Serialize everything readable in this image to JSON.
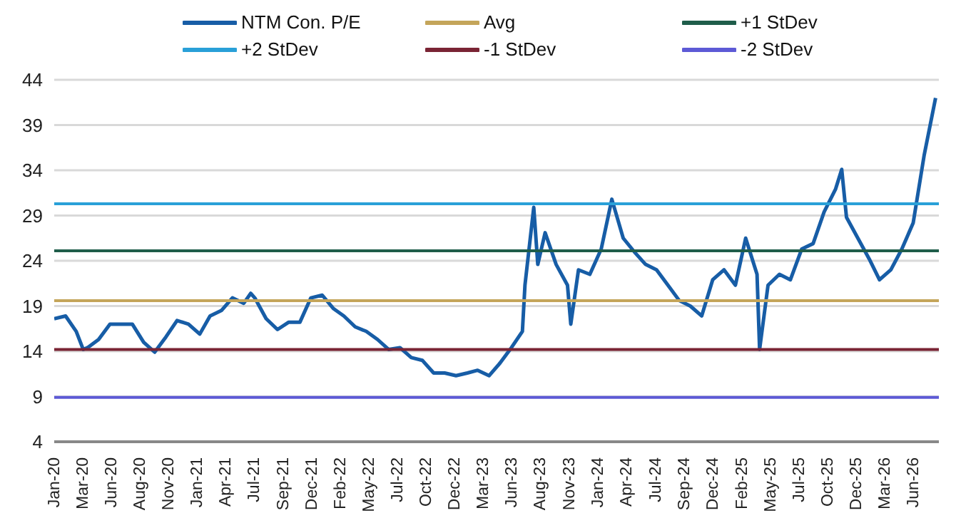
{
  "chart_data": {
    "type": "line",
    "legend": "top",
    "grid": "y",
    "line_style": "solid",
    "marker": "none",
    "ylim": [
      4,
      44
    ],
    "yticks": [
      4,
      9,
      14,
      19,
      24,
      29,
      34,
      39,
      44
    ],
    "xlim": [
      "2020-01-01",
      "2026-08-10"
    ],
    "xticks": [
      {
        "value": "2020-01-02",
        "label": "Jan-20"
      },
      {
        "value": "2020-03-20",
        "label": "Mar-20"
      },
      {
        "value": "2020-06-06",
        "label": "Jun-20"
      },
      {
        "value": "2020-08-23",
        "label": "Aug-20"
      },
      {
        "value": "2020-11-09",
        "label": "Nov-20"
      },
      {
        "value": "2021-01-26",
        "label": "Jan-21"
      },
      {
        "value": "2021-04-14",
        "label": "Apr-21"
      },
      {
        "value": "2021-07-01",
        "label": "Jul-21"
      },
      {
        "value": "2021-09-18",
        "label": "Sep-21"
      },
      {
        "value": "2021-12-05",
        "label": "Dec-21"
      },
      {
        "value": "2022-02-21",
        "label": "Feb-22"
      },
      {
        "value": "2022-05-10",
        "label": "May-22"
      },
      {
        "value": "2022-07-27",
        "label": "Jul-22"
      },
      {
        "value": "2022-10-13",
        "label": "Oct-22"
      },
      {
        "value": "2022-12-30",
        "label": "Dec-22"
      },
      {
        "value": "2023-03-18",
        "label": "Mar-23"
      },
      {
        "value": "2023-06-04",
        "label": "Jun-23"
      },
      {
        "value": "2023-08-21",
        "label": "Aug-23"
      },
      {
        "value": "2023-11-07",
        "label": "Nov-23"
      },
      {
        "value": "2024-01-24",
        "label": "Jan-24"
      },
      {
        "value": "2024-04-11",
        "label": "Apr-24"
      },
      {
        "value": "2024-07-01",
        "label": "Jul-24"
      },
      {
        "value": "2024-09-17",
        "label": "Sep-24"
      },
      {
        "value": "2024-12-04",
        "label": "Dec-24"
      },
      {
        "value": "2025-02-20",
        "label": "Feb-25"
      },
      {
        "value": "2025-05-09",
        "label": "May-25"
      },
      {
        "value": "2025-07-26",
        "label": "Jul-25"
      },
      {
        "value": "2025-10-12",
        "label": "Oct-25"
      },
      {
        "value": "2025-12-29",
        "label": "Dec-25"
      },
      {
        "value": "2026-03-17",
        "label": "Mar-26"
      },
      {
        "value": "2026-06-03",
        "label": "Jun-26"
      }
    ],
    "series": [
      {
        "name": "NTM Con. P/E",
        "color": "#175da6",
        "x": [
          "2020-01",
          "2020-02",
          "2020-03",
          "2020-03-20",
          "2020-04",
          "2020-05",
          "2020-06",
          "2020-07",
          "2020-08",
          "2020-09",
          "2020-10",
          "2020-11",
          "2020-12",
          "2021-01",
          "2021-02",
          "2021-03",
          "2021-04",
          "2021-05",
          "2021-06",
          "2021-06-20",
          "2021-07",
          "2021-08",
          "2021-09",
          "2021-10",
          "2021-11",
          "2021-12",
          "2022-01",
          "2022-02",
          "2022-03",
          "2022-04",
          "2022-05",
          "2022-06",
          "2022-07",
          "2022-08",
          "2022-09",
          "2022-10",
          "2022-11",
          "2022-12",
          "2023-01",
          "2023-02",
          "2023-03",
          "2023-04",
          "2023-05",
          "2023-06",
          "2023-07",
          "2023-07-08",
          "2023-08",
          "2023-08-12",
          "2023-09",
          "2023-10",
          "2023-11",
          "2023-11-10",
          "2023-12",
          "2024-01",
          "2024-02",
          "2024-03",
          "2024-04",
          "2024-05",
          "2024-06",
          "2024-07",
          "2024-08",
          "2024-09",
          "2024-10",
          "2024-11",
          "2024-12",
          "2025-01",
          "2025-02",
          "2025-03",
          "2025-04",
          "2025-04-08",
          "2025-05",
          "2025-06",
          "2025-07",
          "2025-08",
          "2025-09",
          "2025-10",
          "2025-11",
          "2025-11-18",
          "2025-12",
          "2026-01",
          "2026-02",
          "2026-03",
          "2026-04",
          "2026-05",
          "2026-06",
          "2026-07",
          "2026-08"
        ],
        "values": [
          17.6,
          17.9,
          16.2,
          14.2,
          14.4,
          15.3,
          17.0,
          17.0,
          17.0,
          15.0,
          13.9,
          15.6,
          17.4,
          17.0,
          15.9,
          17.9,
          18.5,
          19.9,
          19.3,
          20.4,
          19.9,
          17.6,
          16.4,
          17.2,
          17.2,
          19.9,
          20.2,
          18.7,
          17.9,
          16.7,
          16.2,
          15.3,
          14.2,
          14.4,
          13.3,
          13.0,
          11.6,
          11.6,
          11.3,
          11.6,
          11.9,
          11.3,
          12.7,
          14.4,
          16.2,
          21.3,
          29.9,
          23.6,
          27.1,
          23.6,
          21.3,
          17.0,
          23.0,
          22.5,
          25.3,
          30.8,
          26.5,
          25.0,
          23.6,
          23.0,
          21.3,
          19.6,
          19.0,
          17.9,
          21.9,
          23.0,
          21.3,
          26.5,
          22.5,
          14.2,
          21.3,
          22.5,
          21.9,
          25.3,
          25.9,
          29.4,
          31.9,
          34.1,
          28.8,
          26.5,
          24.2,
          21.9,
          23.0,
          25.3,
          28.2,
          35.7,
          42.0
        ]
      },
      {
        "name": "Avg",
        "color": "#c4a55a",
        "x": [
          "2020-01-01",
          "2026-08-10"
        ],
        "values": [
          19.6,
          19.6
        ]
      },
      {
        "name": "+1 StDev",
        "color": "#1f5d4a",
        "x": [
          "2020-01-01",
          "2026-08-10"
        ],
        "values": [
          25.1,
          25.1
        ]
      },
      {
        "name": "+2 StDev",
        "color": "#29a0d8",
        "x": [
          "2020-01-01",
          "2026-08-10"
        ],
        "values": [
          30.3,
          30.3
        ]
      },
      {
        "name": "-1 StDev",
        "color": "#7a2434",
        "x": [
          "2020-01-01",
          "2026-08-10"
        ],
        "values": [
          14.2,
          14.2
        ]
      },
      {
        "name": "-2 StDev",
        "color": "#5d5ad6",
        "x": [
          "2020-01-01",
          "2026-08-10"
        ],
        "values": [
          8.9,
          8.9
        ]
      }
    ]
  }
}
